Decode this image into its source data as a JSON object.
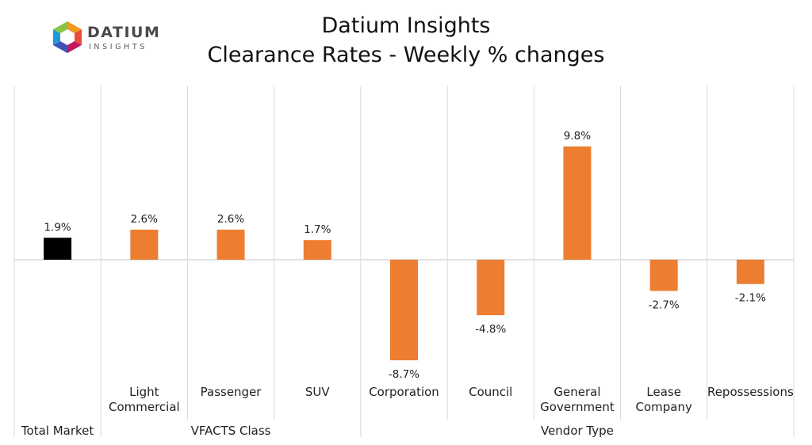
{
  "logo": {
    "text": "DATIUM",
    "subtext": "INSIGHTS"
  },
  "title": "Datium Insights",
  "subtitle": "Clearance Rates - Weekly % changes",
  "colors": {
    "total": "#000000",
    "bar": "#ED7D31",
    "grid": "#D9D9D9"
  },
  "chart_data": {
    "type": "bar",
    "categories": [
      "Total Market",
      "Light Commercial",
      "Passenger",
      "SUV",
      "Corporation",
      "Council",
      "General Government",
      "Lease Company",
      "Repossessions"
    ],
    "values": [
      1.9,
      2.6,
      2.6,
      1.7,
      -8.7,
      -4.8,
      9.8,
      -2.7,
      -2.1
    ],
    "data_labels": [
      "1.9%",
      "2.6%",
      "2.6%",
      "1.7%",
      "-8.7%",
      "-4.8%",
      "9.8%",
      "-2.7%",
      "-2.1%"
    ],
    "groups": [
      {
        "name": "",
        "categories": [
          "Total Market"
        ]
      },
      {
        "name": "VFACTS Class",
        "categories": [
          "Light Commercial",
          "Passenger",
          "SUV"
        ]
      },
      {
        "name": "Vendor Type",
        "categories": [
          "Corporation",
          "Council",
          "General Government",
          "Lease Company",
          "Repossessions"
        ]
      }
    ],
    "ylim": [
      -10,
      14.5
    ],
    "grid": false,
    "legend": "none"
  }
}
